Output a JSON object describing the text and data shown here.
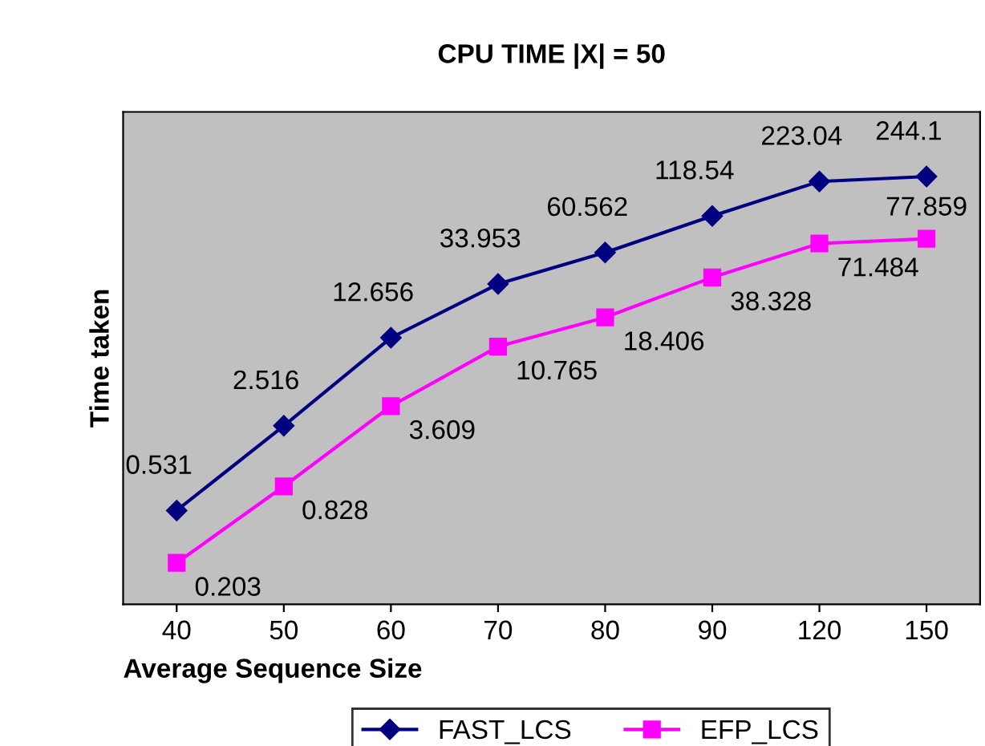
{
  "chart_data": {
    "type": "line",
    "title": "CPU TIME |X| = 50",
    "xlabel": "Average Sequence Size",
    "ylabel": "Time taken",
    "categories": [
      "40",
      "50",
      "60",
      "70",
      "80",
      "90",
      "120",
      "150"
    ],
    "series": [
      {
        "name": "FAST_LCS",
        "color": "#000080",
        "marker": "diamond",
        "values": [
          0.531,
          2.516,
          12.656,
          33.953,
          60.562,
          118.54,
          223.04,
          244.1
        ]
      },
      {
        "name": "EFP_LCS",
        "color": "#ff00ff",
        "marker": "square",
        "values": [
          0.203,
          0.828,
          3.609,
          10.765,
          18.406,
          38.328,
          71.484,
          77.859
        ]
      }
    ],
    "log": true,
    "data_labels": true,
    "legend": "bottom",
    "grid": false,
    "line_style": "solid",
    "tick_labels": "x"
  }
}
